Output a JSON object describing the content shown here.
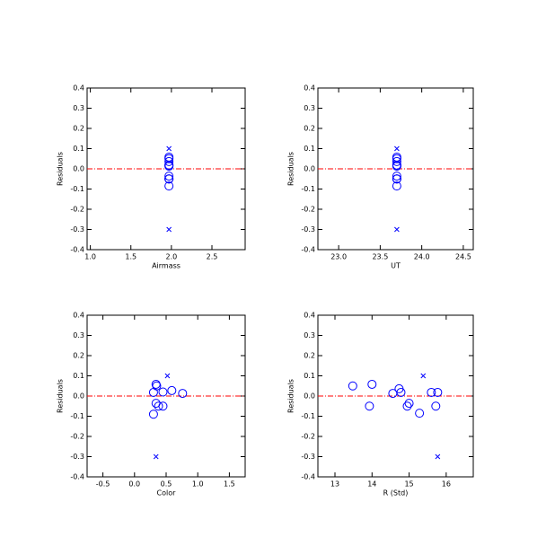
{
  "chart_data": [
    {
      "type": "scatter",
      "xlabel": "Airmass",
      "ylabel": "Residuals",
      "xlim": [
        0.96,
        2.91
      ],
      "ylim": [
        -0.4,
        0.4
      ],
      "xticks": [
        {
          "value": 1,
          "label": "1.0"
        },
        1.5,
        {
          "value": 2,
          "label": "2.0"
        },
        2.5
      ],
      "yticks": [
        -0.4,
        -0.3,
        -0.2,
        -0.1,
        {
          "value": 0,
          "label": "0.0"
        },
        0.1,
        0.2,
        0.3,
        0.4
      ],
      "reference_line": {
        "value": 0,
        "color": "#ff0000"
      },
      "series": [
        {
          "marker": "o",
          "color": "#0000ff",
          "x": [
            1.97,
            1.97,
            1.97,
            1.97,
            1.97,
            1.97,
            1.97,
            1.97,
            1.97,
            1.97,
            1.97,
            1.97
          ],
          "values": [
            0.05,
            0.058,
            -0.05,
            0.013,
            0.036,
            0.018,
            -0.05,
            -0.036,
            -0.085,
            0.018,
            0.018,
            -0.05
          ]
        },
        {
          "marker": "x",
          "color": "#0000ff",
          "x": [
            1.97,
            1.97
          ],
          "values": [
            0.1,
            -0.3
          ]
        }
      ]
    },
    {
      "type": "scatter",
      "xlabel": "UT",
      "ylabel": "Residuals",
      "xlim": [
        22.75,
        24.62
      ],
      "ylim": [
        -0.4,
        0.4
      ],
      "xticks": [
        {
          "value": 23,
          "label": "23.0"
        },
        23.5,
        {
          "value": 24,
          "label": "24.0"
        },
        24.5
      ],
      "yticks": [
        -0.4,
        -0.3,
        -0.2,
        -0.1,
        {
          "value": 0,
          "label": "0.0"
        },
        0.1,
        0.2,
        0.3,
        0.4
      ],
      "reference_line": {
        "value": 0,
        "color": "#ff0000"
      },
      "series": [
        {
          "marker": "o",
          "color": "#0000ff",
          "x": [
            23.7,
            23.7,
            23.7,
            23.7,
            23.7,
            23.7,
            23.7,
            23.7,
            23.7,
            23.7,
            23.7,
            23.7
          ],
          "values": [
            0.05,
            0.058,
            -0.05,
            0.013,
            0.036,
            0.018,
            -0.05,
            -0.036,
            -0.085,
            0.018,
            0.018,
            -0.05
          ]
        },
        {
          "marker": "x",
          "color": "#0000ff",
          "x": [
            23.7,
            23.7
          ],
          "values": [
            0.1,
            -0.3
          ]
        }
      ]
    },
    {
      "type": "scatter",
      "xlabel": "Color",
      "ylabel": "Residuals",
      "xlim": [
        -0.75,
        1.75
      ],
      "ylim": [
        -0.4,
        0.4
      ],
      "xticks": [
        -0.5,
        {
          "value": 0,
          "label": "0.0"
        },
        0.5,
        {
          "value": 1,
          "label": "1.0"
        },
        1.5
      ],
      "yticks": [
        -0.4,
        -0.3,
        -0.2,
        -0.1,
        {
          "value": 0,
          "label": "0.0"
        },
        0.1,
        0.2,
        0.3,
        0.4
      ],
      "reference_line": {
        "value": 0,
        "color": "#ff0000"
      },
      "series": [
        {
          "marker": "o",
          "color": "#0000ff",
          "x": [
            0.34,
            0.35,
            0.3,
            0.45,
            0.59,
            0.76,
            0.34,
            0.38,
            0.45,
            0.3
          ],
          "values": [
            0.058,
            0.05,
            0.018,
            0.02,
            0.027,
            0.013,
            -0.036,
            -0.05,
            -0.05,
            -0.09
          ]
        },
        {
          "marker": "x",
          "color": "#0000ff",
          "x": [
            0.52,
            0.34
          ],
          "values": [
            0.1,
            -0.3
          ]
        }
      ]
    },
    {
      "type": "scatter",
      "xlabel": "R (Std)",
      "ylabel": "Residuals",
      "xlim": [
        12.54,
        16.73
      ],
      "ylim": [
        -0.4,
        0.4
      ],
      "xticks": [
        13,
        14,
        15,
        16
      ],
      "yticks": [
        -0.4,
        -0.3,
        -0.2,
        -0.1,
        {
          "value": 0,
          "label": "0.0"
        },
        0.1,
        0.2,
        0.3,
        0.4
      ],
      "reference_line": {
        "value": 0,
        "color": "#ff0000"
      },
      "series": [
        {
          "marker": "o",
          "color": "#0000ff",
          "x": [
            13.48,
            14.0,
            13.93,
            14.56,
            14.73,
            14.78,
            14.95,
            15.0,
            15.28,
            15.6,
            15.77,
            15.72
          ],
          "values": [
            0.05,
            0.058,
            -0.05,
            0.013,
            0.036,
            0.018,
            -0.05,
            -0.036,
            -0.085,
            0.018,
            0.018,
            -0.05
          ]
        },
        {
          "marker": "x",
          "color": "#0000ff",
          "x": [
            15.38,
            15.77
          ],
          "values": [
            0.1,
            -0.3
          ]
        }
      ]
    }
  ]
}
